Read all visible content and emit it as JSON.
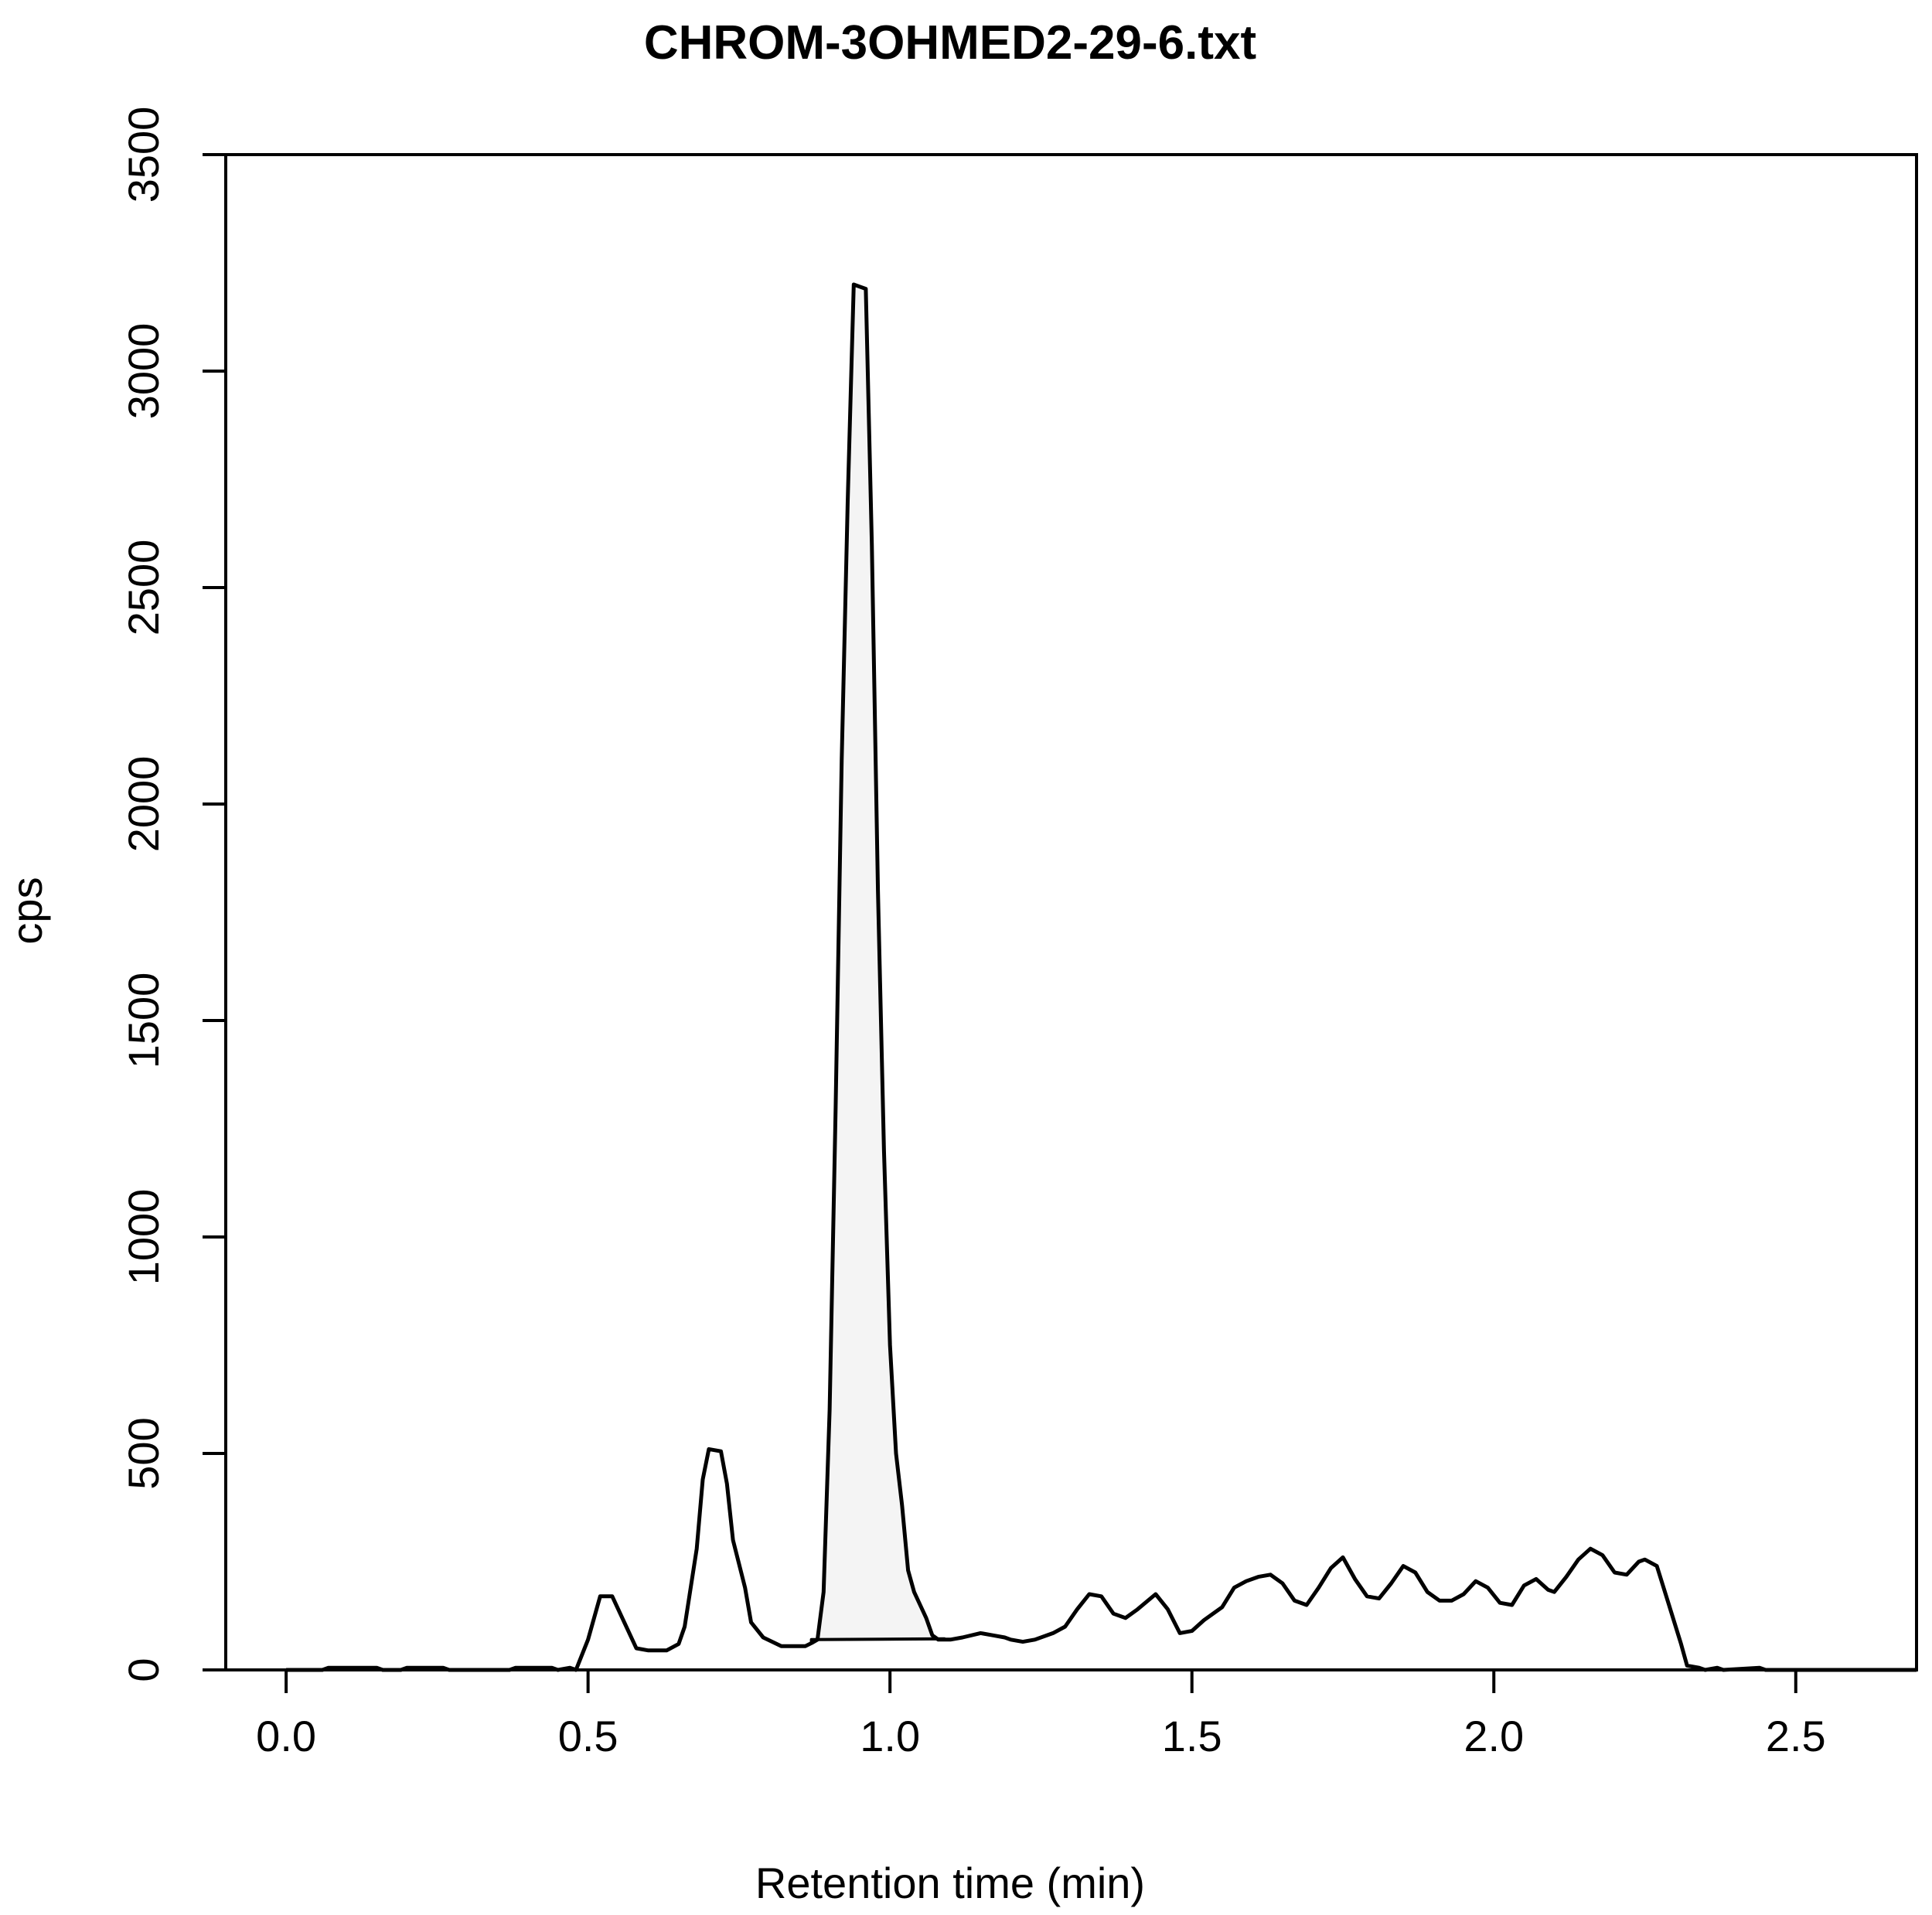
{
  "chart_data": {
    "type": "area",
    "title": "CHROM-3OHMED2-29-6.txt",
    "xlabel": "Retention time (min)",
    "ylabel": "cps",
    "xlim": [
      -0.1,
      2.7
    ],
    "ylim": [
      0,
      3500
    ],
    "x_ticks": [
      0.0,
      0.5,
      1.0,
      1.5,
      2.0,
      2.5
    ],
    "x_tick_labels": [
      "0.0",
      "0.5",
      "1.0",
      "1.5",
      "2.0",
      "2.5"
    ],
    "y_ticks": [
      0,
      500,
      1000,
      1500,
      2000,
      2500,
      3000,
      3500
    ],
    "y_tick_labels": [
      "0",
      "500",
      "1000",
      "1500",
      "2000",
      "2500",
      "3000",
      "3500"
    ],
    "grid": false,
    "legend": "none",
    "series": [
      {
        "x": [
          0.0,
          0.06,
          0.07,
          0.15,
          0.16,
          0.19,
          0.2,
          0.26,
          0.27,
          0.37,
          0.38,
          0.44,
          0.45,
          0.47,
          0.48,
          0.5,
          0.52,
          0.54,
          0.56,
          0.58,
          0.6,
          0.63,
          0.65,
          0.66,
          0.68,
          0.69,
          0.7,
          0.72,
          0.73,
          0.74,
          0.76,
          0.77,
          0.79,
          0.82,
          0.84,
          0.86,
          0.87,
          0.88,
          0.89,
          0.9,
          0.91,
          0.92,
          0.93,
          0.94,
          0.95,
          0.96,
          0.97,
          0.98,
          0.99,
          1.0,
          1.01,
          1.02,
          1.03,
          1.04,
          1.05,
          1.06,
          1.07,
          1.08,
          1.09,
          1.1,
          1.12,
          1.15,
          1.17,
          1.19,
          1.2,
          1.22,
          1.24,
          1.27,
          1.29,
          1.31,
          1.33,
          1.35,
          1.37,
          1.39,
          1.41,
          1.44,
          1.46,
          1.48,
          1.5,
          1.52,
          1.55,
          1.57,
          1.59,
          1.61,
          1.63,
          1.65,
          1.67,
          1.69,
          1.71,
          1.73,
          1.75,
          1.77,
          1.79,
          1.81,
          1.83,
          1.85,
          1.87,
          1.89,
          1.91,
          1.93,
          1.95,
          1.97,
          1.99,
          2.01,
          2.03,
          2.05,
          2.07,
          2.09,
          2.1,
          2.12,
          2.14,
          2.16,
          2.18,
          2.2,
          2.22,
          2.24,
          2.25,
          2.27,
          2.29,
          2.31,
          2.32,
          2.34,
          2.35,
          2.37,
          2.38,
          2.44,
          2.45,
          2.7
        ],
        "y": [
          0,
          0,
          5,
          5,
          0,
          0,
          5,
          5,
          0,
          0,
          5,
          5,
          0,
          5,
          0,
          70,
          170,
          170,
          110,
          50,
          45,
          45,
          60,
          100,
          280,
          440,
          510,
          505,
          430,
          300,
          190,
          110,
          75,
          55,
          55,
          55,
          62,
          70,
          180,
          600,
          1300,
          2100,
          2700,
          3200,
          3195,
          3190,
          2600,
          1800,
          1200,
          750,
          500,
          380,
          230,
          180,
          150,
          120,
          80,
          70,
          70,
          70,
          75,
          85,
          80,
          75,
          70,
          65,
          70,
          85,
          100,
          140,
          175,
          170,
          130,
          120,
          140,
          175,
          140,
          85,
          90,
          115,
          145,
          190,
          205,
          215,
          220,
          200,
          160,
          150,
          190,
          235,
          260,
          210,
          170,
          165,
          200,
          240,
          225,
          180,
          160,
          160,
          175,
          205,
          190,
          155,
          150,
          195,
          210,
          185,
          180,
          215,
          255,
          280,
          265,
          225,
          220,
          250,
          255,
          240,
          150,
          60,
          10,
          5,
          0,
          5,
          0,
          5,
          0,
          0
        ]
      }
    ],
    "shaded_region": {
      "x_start": 0.87,
      "x_end": 1.09,
      "baseline_start": 70,
      "baseline_end": 72
    }
  }
}
